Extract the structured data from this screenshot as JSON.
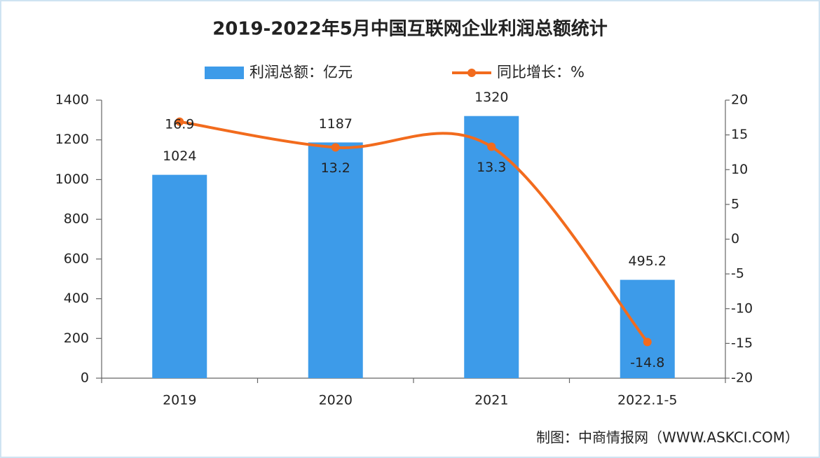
{
  "chart_data": {
    "type": "bar",
    "title": "2019-2022年5月中国互联网企业利润总额统计",
    "categories": [
      "2019",
      "2020",
      "2021",
      "2022.1-5"
    ],
    "series": [
      {
        "name": "利润总额：亿元",
        "type": "bar",
        "color": "#3d9be9",
        "values": [
          1024,
          1187,
          1320,
          495.2
        ]
      },
      {
        "name": "同比增长：%",
        "type": "line",
        "axis": "y2",
        "color": "#f26b1d",
        "values": [
          16.9,
          13.2,
          13.3,
          -14.8
        ]
      }
    ],
    "ylim": [
      0,
      1400
    ],
    "yticks": [
      0,
      200,
      400,
      600,
      800,
      1000,
      1200,
      1400
    ],
    "y2lim": [
      -20,
      20
    ],
    "y2ticks": [
      -20,
      -15,
      -10,
      -5,
      0,
      5,
      10,
      15,
      20
    ],
    "legend": "top",
    "source": "制图：中商情报网（WWW.ASKCI.COM）"
  }
}
